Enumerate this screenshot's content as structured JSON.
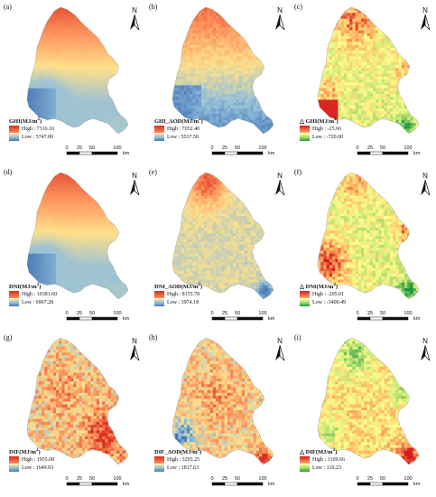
{
  "north_label": "N",
  "legend_high_prefix": "High : ",
  "legend_low_prefix": "Low : ",
  "scale": {
    "ticks": [
      "0",
      "25",
      "50",
      "100"
    ],
    "unit": "km"
  },
  "ramps": {
    "red_blue": [
      "#d7301f",
      "#fc8d59",
      "#fee08b",
      "#91bfdb",
      "#4575b4"
    ],
    "red_green": [
      "#d7191c",
      "#fdae61",
      "#ffff8c",
      "#a6d96a",
      "#1a9641"
    ]
  },
  "panels": [
    {
      "letter": "(a)",
      "title": "GHI(MJ/m",
      "sup": "2",
      "title_end": ")",
      "high": "7316.16",
      "low": "5747.00",
      "ramp": "red_blue",
      "shape": "A",
      "pattern": "north_grad"
    },
    {
      "letter": "(b)",
      "title": "GHI_AOD(MJ/m",
      "sup": "2",
      "title_end": ")",
      "high": "7052.40",
      "low": "5537.50",
      "ramp": "red_blue",
      "shape": "B",
      "pattern": "north_grad_noise"
    },
    {
      "letter": "(c)",
      "title": "△ GHI(MJ/m",
      "sup": "2",
      "title_end": ")",
      "high": "-25.66",
      "low": "-720.00",
      "ramp": "red_green",
      "shape": "B",
      "pattern": "diff_ghi"
    },
    {
      "letter": "(d)",
      "title": "DNI(MJ/m",
      "sup": "2",
      "title_end": ")",
      "high": "10381.60",
      "low": "6967.28",
      "ramp": "red_blue",
      "shape": "A",
      "pattern": "north_grad"
    },
    {
      "letter": "(e)",
      "title": "DNI_AOD(MJ/m",
      "sup": "2",
      "title_end": ")",
      "high": "8155.78",
      "low": "3974.18",
      "ramp": "red_blue",
      "shape": "B",
      "pattern": "dni_aod"
    },
    {
      "letter": "(f)",
      "title": "△ DNI(MJ/m",
      "sup": "2",
      "title_end": ")",
      "high": "-205.01",
      "low": "-3400.49",
      "ramp": "red_green",
      "shape": "B",
      "pattern": "diff_dni"
    },
    {
      "letter": "(g)",
      "title": "DIF(MJ/m",
      "sup": "2",
      "title_end": ")",
      "high": "1955.68",
      "low": "1649.03",
      "ramp": "red_blue",
      "shape": "A",
      "pattern": "dif"
    },
    {
      "letter": "(h)",
      "title": "DIF_AOD(MJ/m",
      "sup": "2",
      "title_end": ")",
      "high": "3293.25",
      "low": "1817.63",
      "ramp": "red_blue",
      "shape": "B",
      "pattern": "dif_aod"
    },
    {
      "letter": "(i)",
      "title": "△ DIF(MJ/m",
      "sup": "2",
      "title_end": ")",
      "high": "1109.66",
      "low": "110.23",
      "ramp": "red_green",
      "shape": "B",
      "pattern": "diff_dif"
    }
  ]
}
